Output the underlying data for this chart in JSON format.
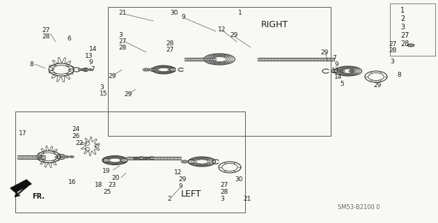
{
  "bg_color": "#f8f8f4",
  "line_color": "#333333",
  "text_color": "#1a1a1a",
  "diagram_code": "SM53-B2100 0",
  "right_label": "RIGHT",
  "left_label": "LEFT",
  "fr_label": "FR.",
  "legend_numbers": [
    "1",
    "2",
    "3",
    "27",
    "28"
  ]
}
